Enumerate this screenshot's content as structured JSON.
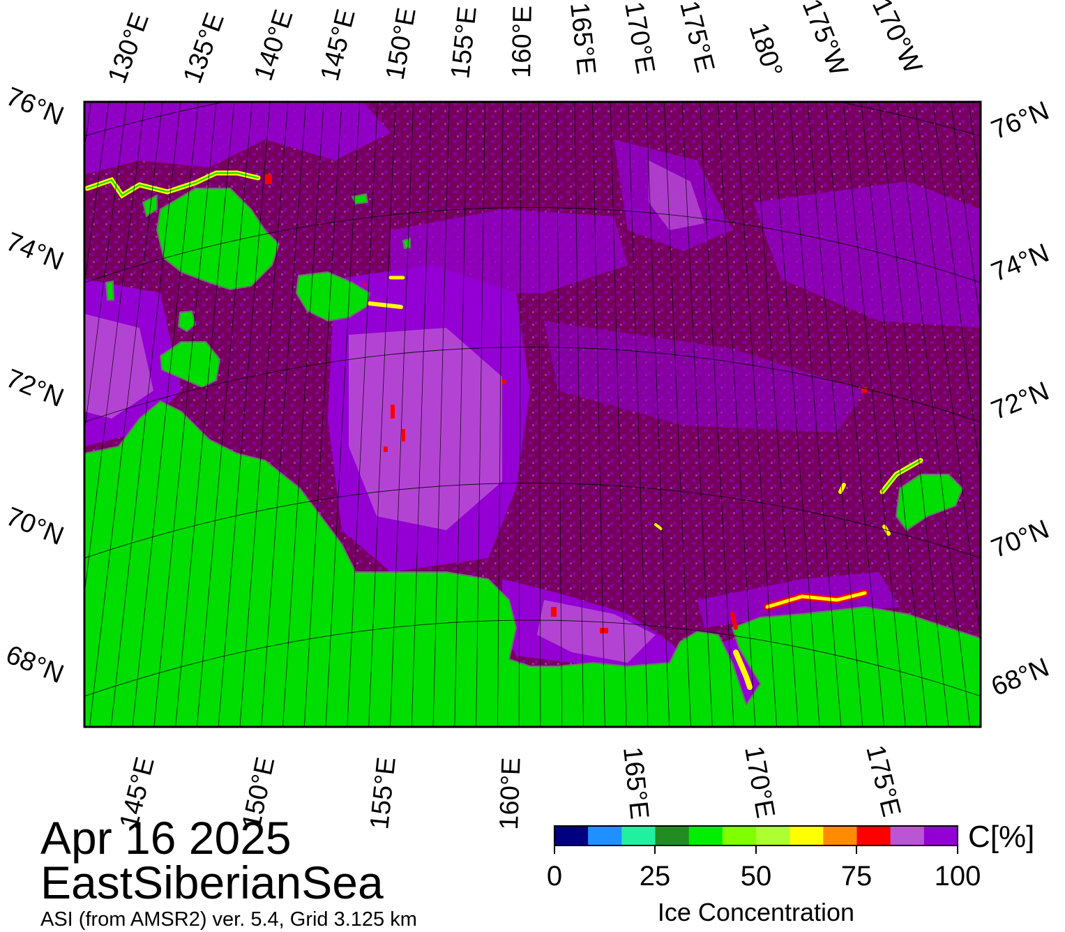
{
  "header": {
    "date": "Apr 16 2025",
    "region": "EastSiberianSea",
    "product": "ASI (from AMSR2) ver. 5.4,  Grid 3.125 km"
  },
  "top_longitude_labels": [
    "130°E",
    "135°E",
    "140°E",
    "145°E",
    "150°E",
    "155°E",
    "160°E",
    "165°E",
    "170°E",
    "175°E",
    "180°",
    "175°W",
    "170°W"
  ],
  "bottom_longitude_labels": [
    "145°E",
    "150°E",
    "155°E",
    "160°E",
    "165°E",
    "170°E",
    "175°E"
  ],
  "latitude_labels": [
    "76°N",
    "74°N",
    "72°N",
    "70°N",
    "68°N"
  ],
  "legend": {
    "title": "Ice Concentration",
    "unit": "C[%]",
    "tick_labels": [
      "0",
      "25",
      "50",
      "75",
      "100"
    ],
    "colors": [
      "#000080",
      "#1e90ff",
      "#20f0a0",
      "#228b22",
      "#00ee00",
      "#7fff00",
      "#adff2f",
      "#ffff00",
      "#ff8c00",
      "#ff0000",
      "#ba55d3",
      "#9400d3"
    ]
  },
  "colors": {
    "land": "#00dd00",
    "sea_ice_full": "#77005f",
    "sea_ice_high": "#9400d3",
    "sea_ice_medium": "#ba55d3",
    "coast": "#707070"
  }
}
